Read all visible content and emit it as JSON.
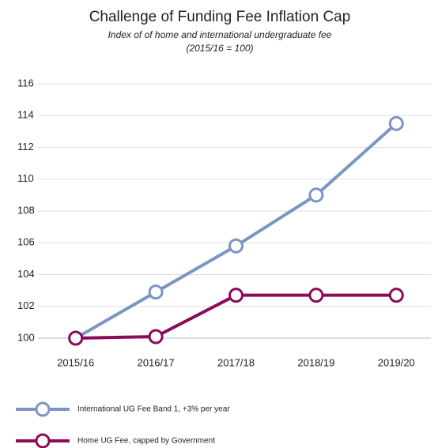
{
  "chart_data": {
    "type": "line",
    "title": "Challenge of Funding Fee Inflation Cap",
    "subtitle": [
      "Index of of home and international undergraduate fee",
      "(2015/16 = 100)"
    ],
    "categories": [
      "2015/16",
      "2016/17",
      "2017/18",
      "2018/19",
      "2019/20"
    ],
    "series": [
      {
        "name": "International UG Fee Band 1, +3% per year",
        "color": "#7b96c4",
        "values": [
          100,
          102.9,
          105.8,
          109,
          113.5
        ]
      },
      {
        "name": "Home UG Fee, capped by Government",
        "color": "#8b0a5a",
        "values": [
          100,
          100.1,
          102.7,
          102.7,
          102.7
        ]
      }
    ],
    "ylim": [
      100,
      116
    ],
    "yticks": [
      100,
      102,
      104,
      106,
      108,
      110,
      112,
      114,
      116
    ],
    "grid": true,
    "legend": "bottom-left"
  }
}
